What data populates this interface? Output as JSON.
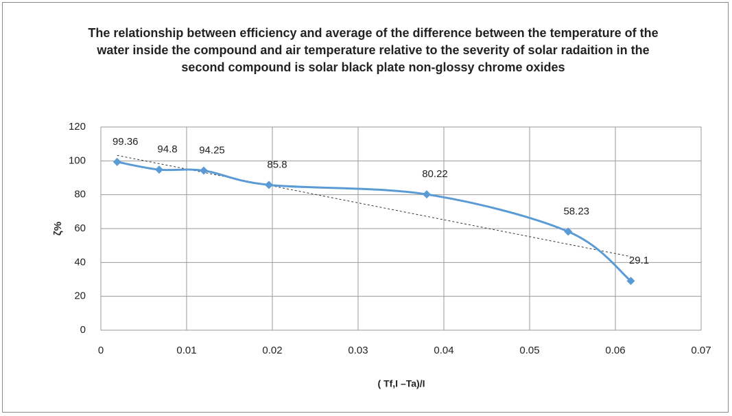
{
  "chart_data": {
    "type": "scatter",
    "title": "The relationship between efficiency and average of the difference between the temperature of the water inside the compound and air temperature relative to the severity of solar radaition in the second compound is solar black plate non-glossy chrome oxides",
    "xlabel": "( Tf,I –Ta)/I",
    "ylabel": "ζ%",
    "series": [
      {
        "color": "#5b9bd5",
        "x": [
          0.0019,
          0.0068,
          0.012,
          0.0196,
          0.038,
          0.0545,
          0.0618
        ],
        "values": [
          99.36,
          94.8,
          94.25,
          85.8,
          80.22,
          58.23,
          29.1
        ]
      }
    ],
    "xlim": [
      0,
      0.07
    ],
    "xticks": [
      0,
      0.01,
      0.02,
      0.03,
      0.04,
      0.05,
      0.06,
      0.07
    ],
    "ylim": [
      0,
      120
    ],
    "yticks": [
      0,
      20,
      40,
      60,
      80,
      100,
      120
    ],
    "grid": true,
    "smooth": true,
    "trendline": true
  }
}
